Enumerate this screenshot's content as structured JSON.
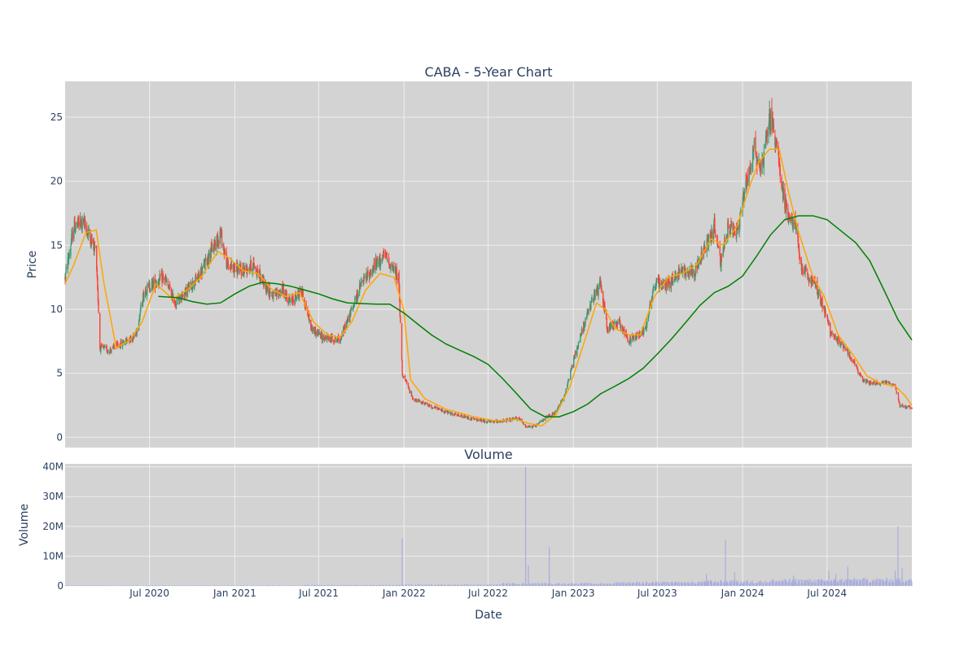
{
  "chart_data": [
    {
      "type": "candlestick",
      "title": "CABA - 5-Year Chart",
      "xlabel": "",
      "ylabel": "Price",
      "ylim": [
        -0.8,
        27.8
      ],
      "yticks": [
        0,
        5,
        10,
        15,
        20,
        25
      ],
      "xlim": [
        "2020-01-01",
        "2024-12-31"
      ],
      "grid": true,
      "colors": {
        "plot_bg": "#d3d3d3",
        "increasing": "#3d9970",
        "decreasing": "#ff4136",
        "ma_short": "#ffa500",
        "ma_long": "#008000",
        "grid": "#ececec"
      },
      "price_path": [
        [
          "2020-01-01",
          12.5
        ],
        [
          "2020-01-20",
          16.5
        ],
        [
          "2020-02-10",
          16.8
        ],
        [
          "2020-02-25",
          15.5
        ],
        [
          "2020-03-08",
          14.5
        ],
        [
          "2020-03-16",
          7.0
        ],
        [
          "2020-04-05",
          6.8
        ],
        [
          "2020-05-01",
          7.3
        ],
        [
          "2020-06-01",
          8.0
        ],
        [
          "2020-06-20",
          11.5
        ],
        [
          "2020-07-10",
          12.0
        ],
        [
          "2020-08-01",
          12.5
        ],
        [
          "2020-08-25",
          10.5
        ],
        [
          "2020-09-20",
          11.5
        ],
        [
          "2020-10-15",
          12.5
        ],
        [
          "2020-11-10",
          14.5
        ],
        [
          "2020-12-01",
          16.0
        ],
        [
          "2020-12-15",
          13.5
        ],
        [
          "2021-01-15",
          13.0
        ],
        [
          "2021-02-10",
          13.5
        ],
        [
          "2021-03-05",
          12.0
        ],
        [
          "2021-03-25",
          11.0
        ],
        [
          "2021-04-15",
          11.5
        ],
        [
          "2021-05-01",
          10.5
        ],
        [
          "2021-05-25",
          11.5
        ],
        [
          "2021-06-15",
          8.5
        ],
        [
          "2021-07-10",
          7.8
        ],
        [
          "2021-08-15",
          7.6
        ],
        [
          "2021-09-05",
          9.5
        ],
        [
          "2021-10-01",
          12.0
        ],
        [
          "2021-11-01",
          13.5
        ],
        [
          "2021-11-20",
          14.2
        ],
        [
          "2021-12-20",
          12.5
        ],
        [
          "2021-12-28",
          5.0
        ],
        [
          "2022-01-20",
          3.0
        ],
        [
          "2022-03-01",
          2.4
        ],
        [
          "2022-04-15",
          1.8
        ],
        [
          "2022-06-01",
          1.4
        ],
        [
          "2022-07-01",
          1.2
        ],
        [
          "2022-08-10",
          1.3
        ],
        [
          "2022-09-05",
          1.5
        ],
        [
          "2022-09-20",
          0.9
        ],
        [
          "2022-10-10",
          0.8
        ],
        [
          "2022-11-01",
          1.5
        ],
        [
          "2022-11-25",
          2.0
        ],
        [
          "2022-12-15",
          3.5
        ],
        [
          "2023-01-05",
          6.5
        ],
        [
          "2023-01-25",
          9.0
        ],
        [
          "2023-02-15",
          11.0
        ],
        [
          "2023-03-01",
          12.0
        ],
        [
          "2023-03-15",
          8.5
        ],
        [
          "2023-04-10",
          9.0
        ],
        [
          "2023-05-01",
          7.5
        ],
        [
          "2023-06-05",
          8.5
        ],
        [
          "2023-06-25",
          12.0
        ],
        [
          "2023-07-25",
          12.0
        ],
        [
          "2023-08-20",
          13.0
        ],
        [
          "2023-09-20",
          13.0
        ],
        [
          "2023-10-15",
          15.0
        ],
        [
          "2023-11-01",
          16.5
        ],
        [
          "2023-11-15",
          13.5
        ],
        [
          "2023-12-01",
          16.5
        ],
        [
          "2023-12-20",
          16.0
        ],
        [
          "2024-01-10",
          20.0
        ],
        [
          "2024-01-25",
          22.5
        ],
        [
          "2024-02-10",
          21.0
        ],
        [
          "2024-02-28",
          25.0
        ],
        [
          "2024-03-15",
          23.0
        ],
        [
          "2024-03-28",
          19.0
        ],
        [
          "2024-04-10",
          17.0
        ],
        [
          "2024-04-25",
          16.5
        ],
        [
          "2024-05-05",
          13.5
        ],
        [
          "2024-05-20",
          12.5
        ],
        [
          "2024-06-05",
          12.0
        ],
        [
          "2024-06-25",
          10.0
        ],
        [
          "2024-07-10",
          8.0
        ],
        [
          "2024-08-10",
          7.0
        ],
        [
          "2024-08-25",
          6.0
        ],
        [
          "2024-09-15",
          4.5
        ],
        [
          "2024-10-05",
          4.2
        ],
        [
          "2024-11-05",
          4.3
        ],
        [
          "2024-11-25",
          4.0
        ],
        [
          "2024-12-05",
          2.5
        ],
        [
          "2024-12-31",
          2.3
        ]
      ],
      "ma_short": [
        [
          "2020-01-01",
          12.0
        ],
        [
          "2020-01-20",
          13.5
        ],
        [
          "2020-02-15",
          16.0
        ],
        [
          "2020-03-08",
          16.2
        ],
        [
          "2020-03-25",
          12.0
        ],
        [
          "2020-04-20",
          7.0
        ],
        [
          "2020-05-20",
          7.6
        ],
        [
          "2020-06-15",
          9.0
        ],
        [
          "2020-07-15",
          12.0
        ],
        [
          "2020-08-20",
          10.8
        ],
        [
          "2020-09-20",
          11.5
        ],
        [
          "2020-10-20",
          12.5
        ],
        [
          "2020-11-25",
          14.5
        ],
        [
          "2020-12-20",
          14.0
        ],
        [
          "2021-01-20",
          13.0
        ],
        [
          "2021-02-20",
          12.8
        ],
        [
          "2021-03-20",
          11.6
        ],
        [
          "2021-04-20",
          11.0
        ],
        [
          "2021-05-20",
          11.3
        ],
        [
          "2021-06-20",
          9.0
        ],
        [
          "2021-07-20",
          8.0
        ],
        [
          "2021-08-15",
          7.8
        ],
        [
          "2021-09-10",
          9.0
        ],
        [
          "2021-10-10",
          11.5
        ],
        [
          "2021-11-10",
          12.8
        ],
        [
          "2021-12-10",
          12.5
        ],
        [
          "2021-12-31",
          10.0
        ],
        [
          "2022-01-15",
          4.5
        ],
        [
          "2022-02-15",
          3.0
        ],
        [
          "2022-04-01",
          2.2
        ],
        [
          "2022-06-01",
          1.6
        ],
        [
          "2022-07-15",
          1.3
        ],
        [
          "2022-09-01",
          1.4
        ],
        [
          "2022-09-25",
          1.1
        ],
        [
          "2022-10-25",
          0.9
        ],
        [
          "2022-11-25",
          1.8
        ],
        [
          "2022-12-25",
          4.0
        ],
        [
          "2023-01-25",
          7.5
        ],
        [
          "2023-02-20",
          10.5
        ],
        [
          "2023-03-10",
          10.0
        ],
        [
          "2023-04-01",
          8.5
        ],
        [
          "2023-05-01",
          8.0
        ],
        [
          "2023-05-25",
          8.0
        ],
        [
          "2023-06-25",
          11.0
        ],
        [
          "2023-07-25",
          12.5
        ],
        [
          "2023-08-25",
          12.8
        ],
        [
          "2023-09-25",
          13.5
        ],
        [
          "2023-10-25",
          15.5
        ],
        [
          "2023-11-20",
          15.0
        ],
        [
          "2023-12-20",
          16.5
        ],
        [
          "2024-01-15",
          19.5
        ],
        [
          "2024-02-05",
          21.5
        ],
        [
          "2024-02-28",
          22.5
        ],
        [
          "2024-03-20",
          22.5
        ],
        [
          "2024-04-10",
          19.0
        ],
        [
          "2024-05-01",
          16.0
        ],
        [
          "2024-06-01",
          12.5
        ],
        [
          "2024-06-25",
          11.0
        ],
        [
          "2024-07-25",
          8.0
        ],
        [
          "2024-08-25",
          6.5
        ],
        [
          "2024-09-25",
          4.8
        ],
        [
          "2024-10-25",
          4.2
        ],
        [
          "2024-11-25",
          4.0
        ],
        [
          "2024-12-15",
          3.3
        ],
        [
          "2024-12-31",
          2.5
        ]
      ],
      "ma_long": [
        [
          "2020-07-20",
          11.0
        ],
        [
          "2020-09-01",
          10.9
        ],
        [
          "2020-10-01",
          10.6
        ],
        [
          "2020-11-01",
          10.4
        ],
        [
          "2020-12-01",
          10.5
        ],
        [
          "2021-01-01",
          11.2
        ],
        [
          "2021-02-01",
          11.8
        ],
        [
          "2021-03-01",
          12.1
        ],
        [
          "2021-04-01",
          12.0
        ],
        [
          "2021-05-01",
          11.8
        ],
        [
          "2021-06-01",
          11.5
        ],
        [
          "2021-07-01",
          11.2
        ],
        [
          "2021-08-01",
          10.8
        ],
        [
          "2021-09-01",
          10.5
        ],
        [
          "2021-10-01",
          10.45
        ],
        [
          "2021-11-01",
          10.4
        ],
        [
          "2021-12-01",
          10.4
        ],
        [
          "2022-01-01",
          9.7
        ],
        [
          "2022-02-01",
          8.8
        ],
        [
          "2022-03-01",
          8.0
        ],
        [
          "2022-04-01",
          7.3
        ],
        [
          "2022-05-01",
          6.8
        ],
        [
          "2022-06-01",
          6.3
        ],
        [
          "2022-07-01",
          5.7
        ],
        [
          "2022-08-01",
          4.6
        ],
        [
          "2022-09-01",
          3.4
        ],
        [
          "2022-10-01",
          2.2
        ],
        [
          "2022-11-01",
          1.6
        ],
        [
          "2022-12-01",
          1.6
        ],
        [
          "2023-01-01",
          2.0
        ],
        [
          "2023-02-01",
          2.6
        ],
        [
          "2023-03-01",
          3.4
        ],
        [
          "2023-04-01",
          4.0
        ],
        [
          "2023-05-01",
          4.6
        ],
        [
          "2023-06-01",
          5.4
        ],
        [
          "2023-07-01",
          6.5
        ],
        [
          "2023-08-01",
          7.7
        ],
        [
          "2023-09-01",
          9.0
        ],
        [
          "2023-10-01",
          10.3
        ],
        [
          "2023-11-01",
          11.3
        ],
        [
          "2023-12-01",
          11.8
        ],
        [
          "2024-01-01",
          12.6
        ],
        [
          "2024-02-01",
          14.2
        ],
        [
          "2024-03-01",
          15.8
        ],
        [
          "2024-04-01",
          17.0
        ],
        [
          "2024-05-01",
          17.3
        ],
        [
          "2024-06-01",
          17.3
        ],
        [
          "2024-07-01",
          17.0
        ],
        [
          "2024-08-01",
          16.1
        ],
        [
          "2024-09-01",
          15.2
        ],
        [
          "2024-10-01",
          13.8
        ],
        [
          "2024-11-01",
          11.5
        ],
        [
          "2024-12-01",
          9.2
        ],
        [
          "2024-12-31",
          7.6
        ]
      ]
    },
    {
      "type": "bar",
      "title": "Volume",
      "xlabel": "Date",
      "ylabel": "Volume",
      "ylim": [
        0,
        41000000
      ],
      "ytick_values": [
        0,
        10000000,
        20000000,
        30000000,
        40000000
      ],
      "ytick_labels": [
        "0",
        "10M",
        "20M",
        "30M",
        "40M"
      ],
      "xtick_values": [
        "2020-07-01",
        "2021-01-01",
        "2021-07-01",
        "2022-01-01",
        "2022-07-01",
        "2023-01-01",
        "2023-07-01",
        "2024-01-01",
        "2024-07-01"
      ],
      "xtick_labels": [
        "Jul 2020",
        "Jan 2021",
        "Jul 2021",
        "Jan 2022",
        "Jul 2022",
        "Jan 2023",
        "Jul 2023",
        "Jan 2024",
        "Jul 2024"
      ],
      "colors": {
        "plot_bg": "#d3d3d3",
        "bar": "#a9acdd"
      },
      "baseline_periods": [
        [
          "2020-01-01",
          150000
        ],
        [
          "2021-06-01",
          250000
        ],
        [
          "2022-01-01",
          350000
        ],
        [
          "2022-08-01",
          700000
        ],
        [
          "2023-04-01",
          1000000
        ],
        [
          "2023-10-01",
          1300000
        ],
        [
          "2024-03-01",
          1600000
        ],
        [
          "2024-08-01",
          1800000
        ]
      ],
      "spikes": [
        [
          "2021-12-28",
          16000000
        ],
        [
          "2022-09-20",
          40000000
        ],
        [
          "2022-09-26",
          7000000
        ],
        [
          "2022-11-10",
          13000000
        ],
        [
          "2023-11-25",
          15500000
        ],
        [
          "2023-12-15",
          4500000
        ],
        [
          "2023-10-15",
          4000000
        ],
        [
          "2024-04-20",
          3500000
        ],
        [
          "2024-07-05",
          5000000
        ],
        [
          "2024-07-20",
          4000000
        ],
        [
          "2024-08-15",
          6500000
        ],
        [
          "2024-12-01",
          20000000
        ],
        [
          "2024-12-10",
          6000000
        ],
        [
          "2024-11-25",
          5000000
        ]
      ]
    }
  ]
}
